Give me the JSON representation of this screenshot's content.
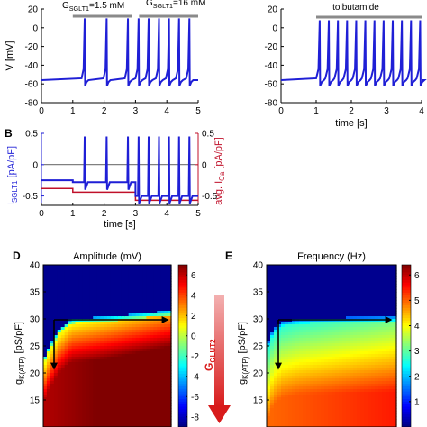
{
  "panel_labels": {
    "b": "B",
    "d": "D",
    "e": "E"
  },
  "colors": {
    "trace": "#1f1fd6",
    "ica": "#c0102a",
    "bar": "#8a8a8a",
    "arrow_red": "#d81b1b"
  },
  "chart_data": [
    {
      "id": "A-left",
      "type": "line",
      "ylabel": "V [mV]",
      "ylim": [
        -80,
        20
      ],
      "yticks": [
        -80,
        -60,
        -40,
        -20,
        0,
        20
      ],
      "xlim": [
        0,
        5
      ],
      "xticks": [
        0,
        1,
        2,
        3,
        4,
        5
      ],
      "annotations": [
        {
          "text": "G_SGLT1=1.5 mM",
          "label_main": "G",
          "label_sub": "SGLT1",
          "label_rest": "=1.5 mM",
          "x_start": 1.0,
          "x_end": 3.0
        },
        {
          "text": "G_SGLT1=16 mM",
          "label_main": "G",
          "label_sub": "SGLT1",
          "label_rest": "=16 mM",
          "x_start": 3.0,
          "x_end": 5.0
        }
      ],
      "series": [
        {
          "baseline": -56,
          "spike_peak": 10,
          "spike_times": [
            1.38,
            2.08,
            2.76,
            3.1,
            3.42,
            3.75,
            4.07,
            4.39,
            4.72
          ]
        }
      ]
    },
    {
      "id": "A-right",
      "type": "line",
      "xlabel": "time [s]",
      "ylim": [
        -80,
        20
      ],
      "yticks": [
        -80,
        -60,
        -40,
        -20,
        0,
        20
      ],
      "xlim": [
        0,
        4
      ],
      "xticks": [
        0,
        1,
        2,
        3,
        4
      ],
      "annotations": [
        {
          "text": "tolbutamide",
          "x_start": 1.0,
          "x_end": 4.0
        }
      ],
      "series": [
        {
          "baseline": -56,
          "spike_peak": 8,
          "spike_times": [
            1.1,
            1.36,
            1.62,
            1.88,
            2.14,
            2.4,
            2.66,
            2.92,
            3.18,
            3.44,
            3.7,
            3.96
          ]
        }
      ]
    },
    {
      "id": "B",
      "type": "line",
      "xlabel": "time [s]",
      "ylabel_left": "I_SGLT1 [pA/pF]",
      "ylabel_left_main": "I",
      "ylabel_left_sub": "SGLT1",
      "ylabel_left_rest": " [pA/pF]",
      "ylabel_right": "avg. I_Ca [pA/pF]",
      "ylabel_right_main": "avg. I",
      "ylabel_right_sub": "Ca",
      "ylabel_right_rest": " [pA/pF]",
      "ylim": [
        -0.65,
        0.5
      ],
      "yticks_left": [
        0.5,
        0,
        -0.5
      ],
      "yticks_right": [
        0.5,
        0,
        -0.5
      ],
      "xlim": [
        0,
        5
      ],
      "xticks": [
        0,
        1,
        2,
        3,
        4,
        5
      ],
      "series": [
        {
          "name": "I_SGLT1",
          "segments": [
            {
              "x_start": 0,
              "x_end": 1,
              "y": -0.25
            },
            {
              "x_start": 1,
              "x_end": 3,
              "y": -0.28
            },
            {
              "x_start": 3,
              "x_end": 5,
              "y": -0.5
            }
          ]
        },
        {
          "name": "avg. I_Ca",
          "segments": [
            {
              "x_start": 0,
              "x_end": 1,
              "y": -0.38
            },
            {
              "x_start": 1,
              "x_end": 3,
              "y": -0.44
            },
            {
              "x_start": 3,
              "x_end": 5,
              "y": -0.57
            }
          ]
        }
      ]
    },
    {
      "id": "D",
      "type": "heatmap",
      "title": "Amplitude (mV)",
      "ylabel": "g_K(ATP) [pS/pF]",
      "ylabel_main": "g",
      "ylabel_sub": "K(ATP)",
      "ylabel_rest": " [pS/pF]",
      "ylim": [
        10,
        40
      ],
      "yticks": [
        15,
        20,
        25,
        30,
        35,
        40
      ],
      "colorbar": {
        "min": -9,
        "max": 7,
        "ticks": [
          6,
          4,
          2,
          0,
          -2,
          -4,
          -6,
          -8
        ]
      },
      "silent_threshold": [
        {
          "x": 0.0,
          "y": 22.5
        },
        {
          "x": 0.05,
          "y": 25
        },
        {
          "x": 0.12,
          "y": 28
        },
        {
          "x": 0.22,
          "y": 30
        },
        {
          "x": 0.55,
          "y": 30.5
        },
        {
          "x": 1.0,
          "y": 31.5
        }
      ]
    },
    {
      "id": "E",
      "type": "heatmap",
      "title": "Frequency (Hz)",
      "ylabel": "g_K(ATP) [pS/pF]",
      "ylabel_main": "g",
      "ylabel_sub": "K(ATP)",
      "ylabel_rest": " [pS/pF]",
      "ylim": [
        10,
        40
      ],
      "yticks": [
        15,
        20,
        25,
        30,
        35,
        40
      ],
      "colorbar": {
        "min": 0,
        "max": 6.4,
        "ticks": [
          6,
          5,
          4,
          3,
          2,
          1
        ]
      },
      "silent_threshold": [
        {
          "x": 0.0,
          "y": 25
        },
        {
          "x": 0.05,
          "y": 28
        },
        {
          "x": 0.12,
          "y": 29.5
        },
        {
          "x": 0.25,
          "y": 30
        },
        {
          "x": 1.0,
          "y": 30.5
        }
      ]
    }
  ],
  "g_glut2_label": {
    "main": "G",
    "sub": "GLUT2"
  }
}
